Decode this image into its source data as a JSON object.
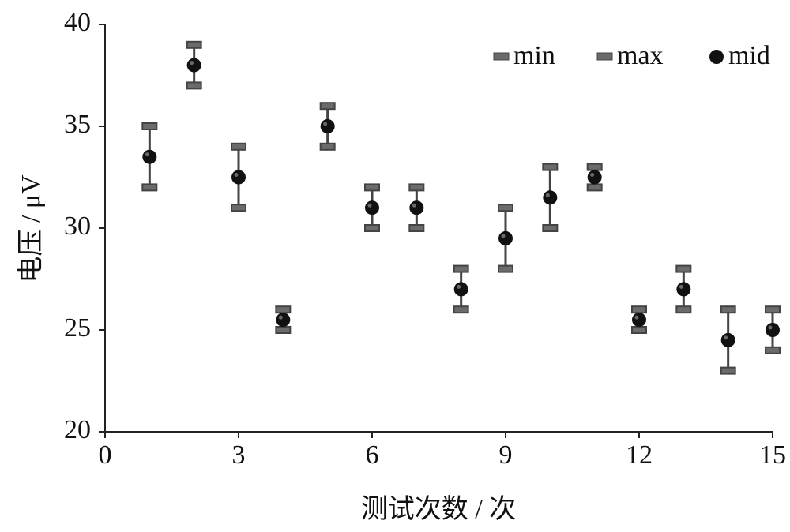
{
  "chart_data": {
    "type": "scatter",
    "x": [
      1,
      2,
      3,
      4,
      5,
      6,
      7,
      8,
      9,
      10,
      11,
      12,
      13,
      14,
      15
    ],
    "series": [
      {
        "name": "min",
        "values": [
          32,
          37,
          31,
          25,
          34,
          30,
          30,
          26,
          28,
          30,
          32,
          25,
          26,
          23,
          24
        ]
      },
      {
        "name": "max",
        "values": [
          35,
          39,
          34,
          26,
          36,
          32,
          32,
          28,
          31,
          33,
          33,
          26,
          28,
          26,
          26
        ]
      },
      {
        "name": "mid",
        "values": [
          33.5,
          38,
          32.5,
          25.5,
          35,
          31,
          31,
          27,
          29.5,
          31.5,
          32.5,
          25.5,
          27,
          24.5,
          25
        ]
      }
    ],
    "xlabel": "测试次数 / 次",
    "ylabel": "电压 / μV",
    "xlim": [
      0,
      15
    ],
    "ylim": [
      20,
      40
    ],
    "xticks": [
      "0",
      "3",
      "6",
      "9",
      "12",
      "15"
    ],
    "yticks": [
      "20",
      "25",
      "30",
      "35",
      "40"
    ],
    "grid": false,
    "legend_position": "top-right",
    "colors": {
      "marker": "#111111",
      "cap": "#6b6b6b",
      "whisker": "#444444"
    }
  }
}
